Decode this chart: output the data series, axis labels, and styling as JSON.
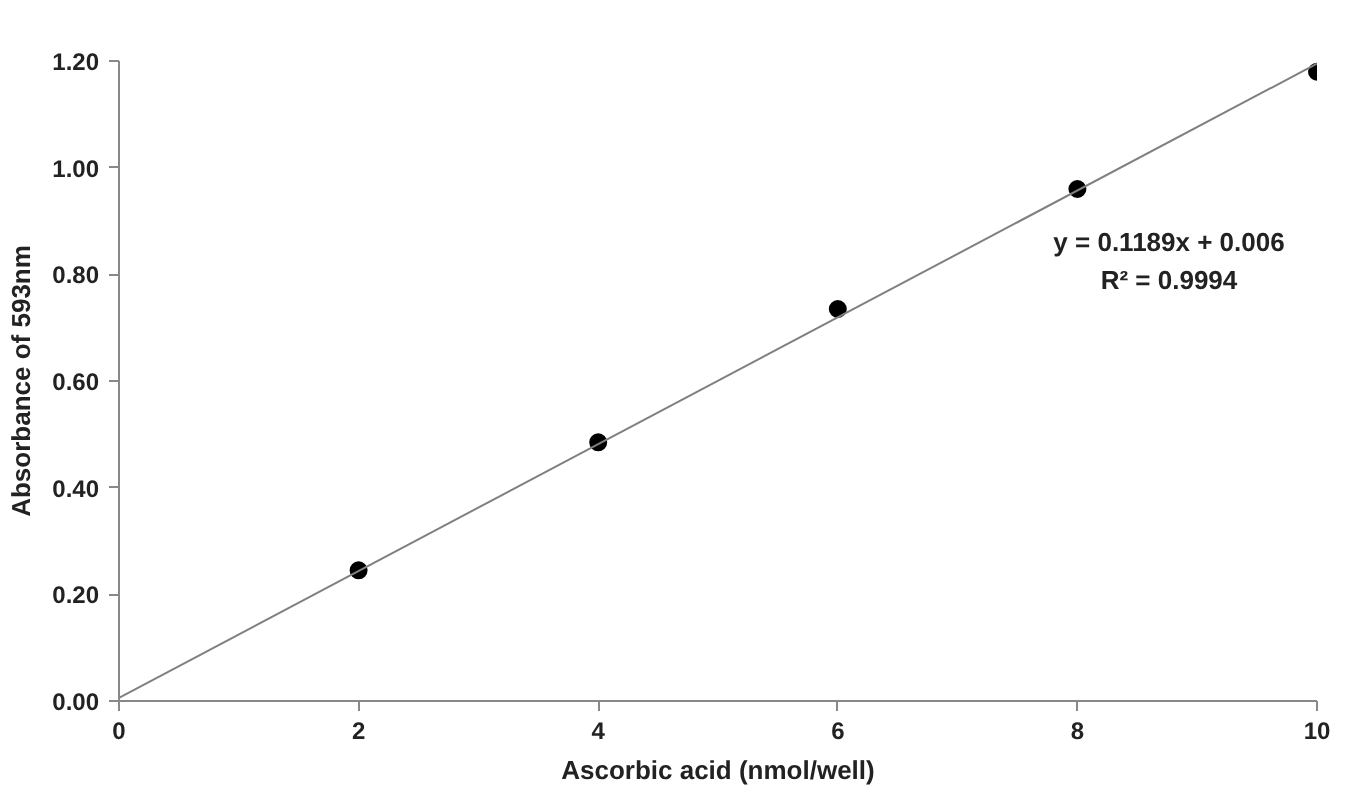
{
  "chart_data": {
    "type": "scatter",
    "xlabel": "Ascorbic acid (nmol/well)",
    "ylabel": "Absorbance of 593nm",
    "x": [
      2,
      4,
      6,
      8,
      10
    ],
    "series": [
      {
        "color": "#000000",
        "values": [
          0.245,
          0.485,
          0.735,
          0.96,
          1.18
        ]
      },
      {
        "type": "line",
        "marker": "none",
        "color": "#808080",
        "x": [
          0,
          10
        ],
        "values": [
          0.006,
          1.195
        ]
      }
    ],
    "marker": "circle",
    "grid": false,
    "xlim": [
      0,
      10
    ],
    "xticks": [
      0,
      2,
      4,
      6,
      8,
      10
    ],
    "ylim": [
      0,
      1.2
    ],
    "yticks": [
      {
        "value": 0,
        "label": "0.00"
      },
      {
        "value": 0.2,
        "label": "0.20"
      },
      {
        "value": 0.4,
        "label": "0.40"
      },
      {
        "value": 0.6,
        "label": "0.60"
      },
      {
        "value": 0.8,
        "label": "0.80"
      },
      {
        "value": 1.0,
        "label": "1.00"
      },
      {
        "value": 1.2,
        "label": "1.20"
      }
    ],
    "annotations": [
      "y = 0.1189x + 0.006",
      "R² = 0.9994"
    ]
  }
}
